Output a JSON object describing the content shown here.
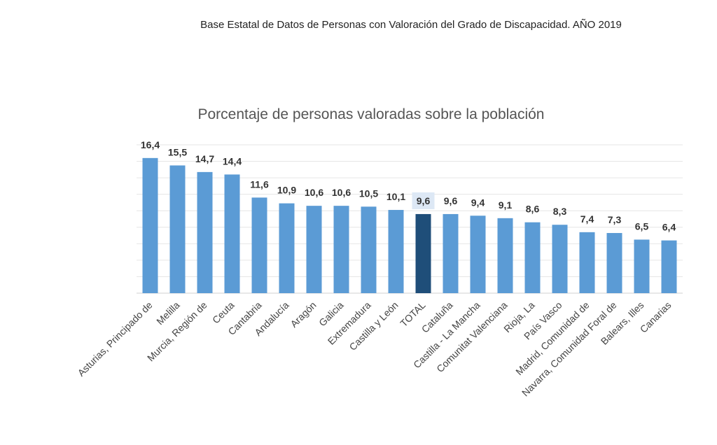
{
  "document_title": "Base Estatal de Datos de Personas con Valoración del Grado de Discapacidad. AÑO 2019",
  "chart_data": {
    "type": "bar",
    "title": "Porcentaje de personas valoradas sobre la población",
    "xlabel": "",
    "ylabel": "",
    "ylim": [
      0,
      18
    ],
    "grid": true,
    "grid_step": 2,
    "categories": [
      "Asturias, Principado de",
      "Melilla",
      "Murcia, Región de",
      "Ceuta",
      "Cantabria",
      "Andalucía",
      "Aragón",
      "Galicia",
      "Extremadura",
      "Castilla y León",
      "TOTAL",
      "Cataluña",
      "Castilla - La Mancha",
      "Comunitat Valenciana",
      "Rioja, La",
      "País Vasco",
      "Madrid, Comunidad de",
      "Navarra, Comunidad Foral de",
      "Balears, Illes",
      "Canarias"
    ],
    "values": [
      16.4,
      15.5,
      14.7,
      14.4,
      11.6,
      10.9,
      10.6,
      10.6,
      10.5,
      10.1,
      9.6,
      9.6,
      9.4,
      9.1,
      8.6,
      8.3,
      7.4,
      7.3,
      6.5,
      6.4
    ],
    "labels": [
      "16,4",
      "15,5",
      "14,7",
      "14,4",
      "11,6",
      "10,9",
      "10,6",
      "10,6",
      "10,5",
      "10,1",
      "9,6",
      "9,6",
      "9,4",
      "9,1",
      "8,6",
      "8,3",
      "7,4",
      "7,3",
      "6,5",
      "6,4"
    ],
    "highlight_category": "TOTAL",
    "colors": {
      "bar": "#5b9bd5",
      "highlight": "#1f4e79",
      "highlight_label_bg": "#dde8f5",
      "grid": "#e6e6e6"
    }
  }
}
